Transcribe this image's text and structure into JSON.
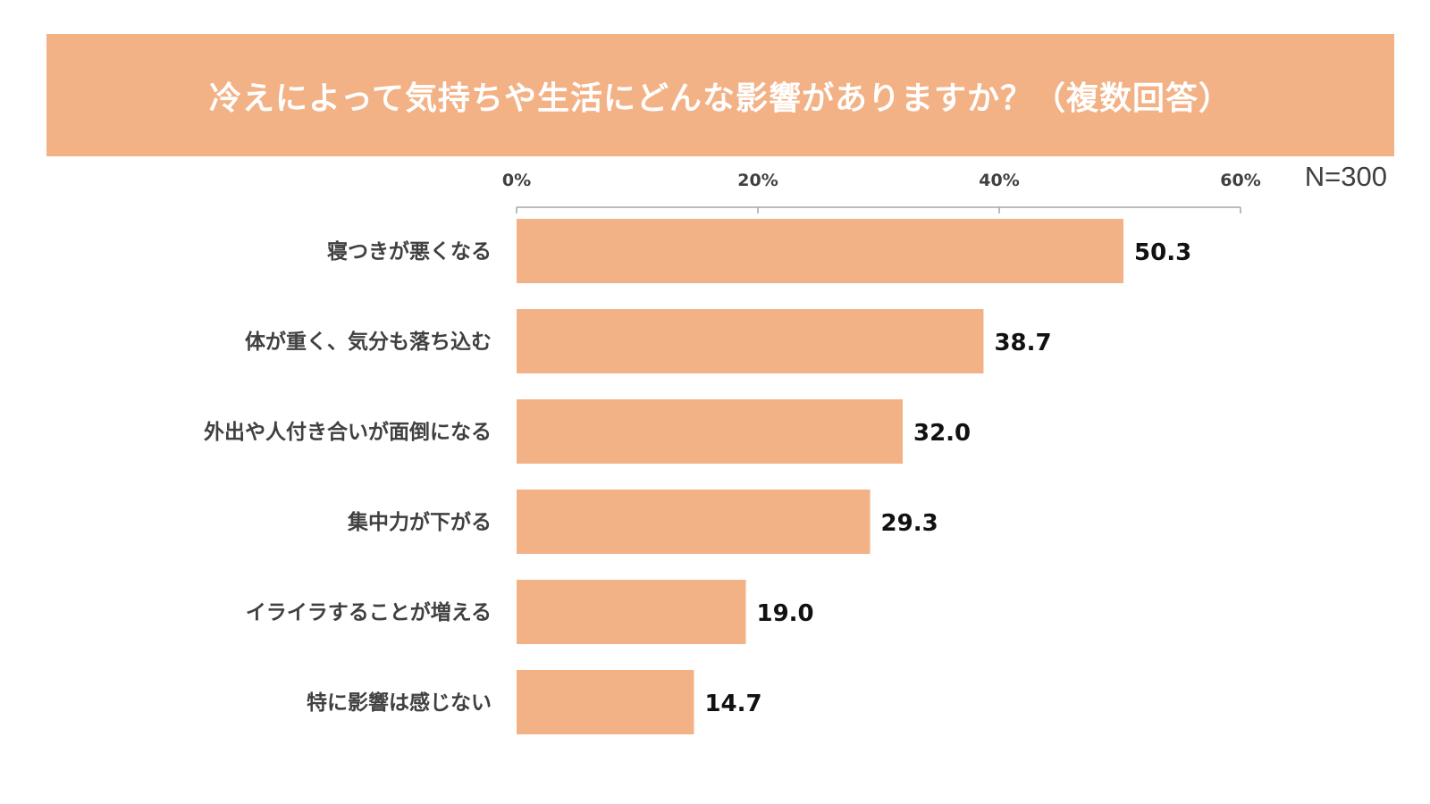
{
  "colors": {
    "accent": "#F3B186",
    "bar": "#F3B186",
    "axis": "#A6A6A6",
    "title_text": "#FFFFFF",
    "label_text": "#404040",
    "value_text": "#111111"
  },
  "header": {
    "sample_size": "N=300"
  },
  "chart_data": {
    "type": "bar",
    "orientation": "horizontal",
    "title": "冷えによって気持ちや生活にどんな影響がありますか？（複数回答）",
    "categories": [
      "寝つきが悪くなる",
      "体が重く、気分も落ち込む",
      "外出や人付き合いが面倒になる",
      "集中力が下がる",
      "イライラすることが増える",
      "特に影響は感じない"
    ],
    "values": [
      50.3,
      38.7,
      32.0,
      29.3,
      19.0,
      14.7
    ],
    "value_labels": [
      "50.3",
      "38.7",
      "32.0",
      "29.3",
      "19.0",
      "14.7"
    ],
    "xlim": [
      0,
      60
    ],
    "xticks": [
      0,
      20,
      40,
      60
    ],
    "xtick_labels": [
      "0%",
      "20%",
      "40%",
      "60%"
    ],
    "axis_position": "top",
    "grid": false,
    "legend": "none",
    "xlabel": "",
    "ylabel": ""
  }
}
